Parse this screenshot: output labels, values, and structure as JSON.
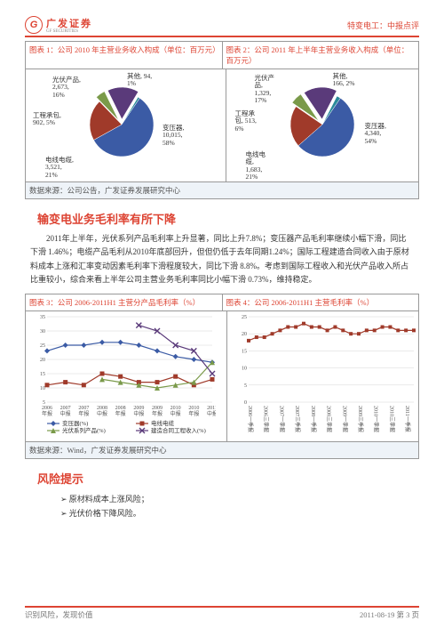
{
  "header": {
    "logo_text": "广发证券",
    "logo_en": "GF SECURITIES",
    "doc_type": "特变电工：中报点评"
  },
  "charts12": {
    "title1": "图表 1：公司 2010 年主营业务收入构成（单位：百万元）",
    "title2": "图表 2：公司 2011 年上半年主营业务收入构成（单位：百万元）",
    "source": "数据来源：公司公告，广发证券发展研究中心",
    "pie1": {
      "slices": [
        {
          "label": "变压器,\n10,015,\n58%",
          "value": 58,
          "color": "#3b5ba5"
        },
        {
          "label": "电线电缆,\n3,521,\n21%",
          "value": 21,
          "color": "#a03a2a"
        },
        {
          "label": "工程承包,\n902, 5%",
          "value": 5,
          "color": "#7a9a4a"
        },
        {
          "label": "光伏产品,\n2,673,\n16%",
          "value": 16,
          "color": "#5a3a7a"
        },
        {
          "label": "其他, 94,\n1%",
          "value": 1,
          "color": "#2a8a9a"
        }
      ]
    },
    "pie2": {
      "slices": [
        {
          "label": "变压器,\n4,340,\n54%",
          "value": 54,
          "color": "#3b5ba5"
        },
        {
          "label": "电线电\n缆,\n1,683,\n21%",
          "value": 21,
          "color": "#a03a2a"
        },
        {
          "label": "工程承\n包, 513,\n6%",
          "value": 6,
          "color": "#7a9a4a"
        },
        {
          "label": "光伏产\n品,\n1,329,\n17%",
          "value": 17,
          "color": "#5a3a7a"
        },
        {
          "label": "其他,\n166, 2%",
          "value": 2,
          "color": "#2a8a9a"
        }
      ]
    }
  },
  "section1": {
    "heading": "输变电业务毛利率有所下降",
    "body": "2011年上半年，光伏系列产品毛利率上升显著，同比上升7.8%；变压器产品毛利率继续小幅下滑，同比下滑 1.46%；电缆产品毛利从2010年底部回升，但但仍低于去年同期1.24%；国际工程建造合同收入由于原材料成本上涨和汇率变动因素毛利率下滑程度较大，同比下滑 8.8%。考虑到国际工程收入和光伏产品收入所占比重较小，综合来看上半年公司主营业务毛利率同比小幅下滑 0.73%，维持稳定。"
  },
  "charts34": {
    "title3": "图表 3：公司 2006-2011H1 主营分产品毛利率（%）",
    "title4": "图表 4：公司 2006-2011H1 主营毛利率（%）",
    "source": "数据来源：Wind，广发证券发展研究中心",
    "chart3": {
      "y_ticks": [
        5,
        10,
        15,
        20,
        25,
        30,
        35
      ],
      "x_labels": [
        "2006\n年报",
        "2007\n中报",
        "2007\n年报",
        "2008\n中报",
        "2008\n年报",
        "2009\n中报",
        "2009\n年报",
        "2010\n中报",
        "2010\n年报",
        "2011\n中报"
      ],
      "series": [
        {
          "name": "变压器(%)",
          "color": "#3b5ba5",
          "marker": "diamond",
          "values": [
            23,
            25,
            25,
            26,
            26,
            25,
            23,
            21,
            20,
            19
          ]
        },
        {
          "name": "电线电缆",
          "color": "#a03a2a",
          "marker": "square",
          "values": [
            11,
            12,
            11,
            15,
            14,
            12,
            12,
            14,
            11,
            13
          ]
        },
        {
          "name": "光伏系列产品(%)",
          "color": "#7a9a4a",
          "marker": "triangle",
          "values": [
            null,
            null,
            null,
            13,
            12,
            11,
            10,
            11,
            12,
            19
          ]
        },
        {
          "name": "建造合同工程收入(%)",
          "color": "#5a3a7a",
          "marker": "x",
          "values": [
            null,
            null,
            null,
            null,
            null,
            32,
            30,
            25,
            23,
            15
          ]
        }
      ]
    },
    "chart4": {
      "y_ticks": [
        0,
        5,
        10,
        15,
        20,
        25
      ],
      "x_labels": [
        "2006一季报",
        "2006三季报",
        "2007一季报",
        "2007三季报",
        "2008一季报",
        "2008三季报",
        "2009一季报",
        "2009三季报",
        "2010一季报",
        "2010三季报",
        "2011一季报"
      ],
      "series": {
        "color": "#a03a2a",
        "marker": "square",
        "values": [
          18,
          19,
          19,
          20,
          21,
          22,
          22,
          23,
          22,
          22,
          21,
          22,
          21,
          20,
          20,
          21,
          21,
          22,
          22,
          21,
          21,
          21
        ]
      }
    }
  },
  "section2": {
    "heading": "风险提示",
    "risks": [
      "原材料成本上涨风险；",
      "光伏价格下降风险。"
    ]
  },
  "footer": {
    "left": "识别风险，发现价值",
    "right": "2011-08-19  第 3 页"
  }
}
